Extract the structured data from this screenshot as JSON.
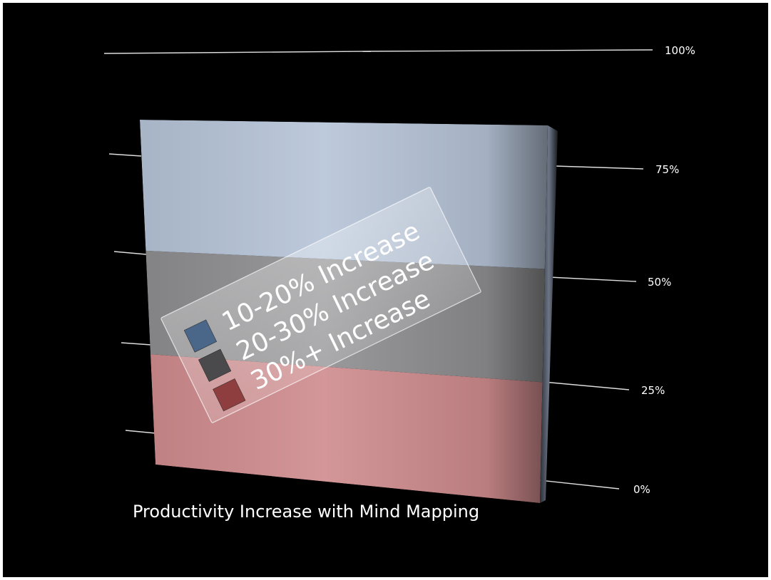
{
  "chart_data": {
    "type": "bar",
    "subtype": "stacked-100-percent-3d",
    "title": "Productivity Increase with Mind Mapping",
    "categories": [
      ""
    ],
    "series": [
      {
        "name": "10-20% Increase",
        "values": [
          38
        ],
        "color": "#b6c4d8"
      },
      {
        "name": "20-30% Increase",
        "values": [
          30
        ],
        "color": "#8e8e90"
      },
      {
        "name": "30%+ Increase",
        "values": [
          32
        ],
        "color": "#cf8b8d"
      }
    ],
    "yticks": [
      "0%",
      "25%",
      "50%",
      "75%",
      "100%"
    ],
    "ylim": [
      0,
      100
    ],
    "legend": {
      "placement": "center-overlay",
      "swatch_colors": [
        "#4a6688",
        "#4a4a4c",
        "#8e3e3e"
      ]
    },
    "background": "#000000",
    "grid": true
  }
}
